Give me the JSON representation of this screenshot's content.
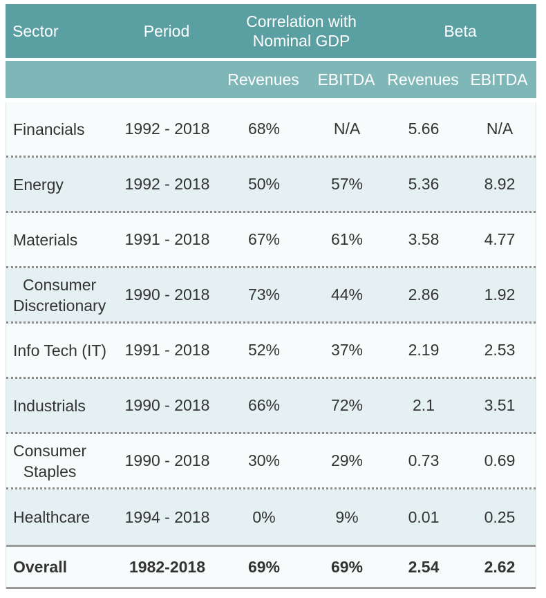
{
  "header": {
    "sector": "Sector",
    "period": "Period",
    "correlation_line1": "Correlation with",
    "correlation_line2": "Nominal GDP",
    "beta": "Beta"
  },
  "subheader": {
    "corr_revenues": "Revenues",
    "corr_ebitda": "EBITDA",
    "beta_revenues": "Revenues",
    "beta_ebitda": "EBITDA"
  },
  "rows": [
    {
      "sector_line1": "Financials",
      "sector_line2": "",
      "period": "1992 - 2018",
      "corr_rev": "68%",
      "corr_ebitda": "N/A",
      "beta_rev": "5.66",
      "beta_ebitda": "N/A"
    },
    {
      "sector_line1": "Energy",
      "sector_line2": "",
      "period": "1992 - 2018",
      "corr_rev": "50%",
      "corr_ebitda": "57%",
      "beta_rev": "5.36",
      "beta_ebitda": "8.92"
    },
    {
      "sector_line1": "Materials",
      "sector_line2": "",
      "period": "1991 - 2018",
      "corr_rev": "67%",
      "corr_ebitda": "61%",
      "beta_rev": "3.58",
      "beta_ebitda": "4.77"
    },
    {
      "sector_line1": "Consumer",
      "sector_line2": "Discretionary",
      "period": "1990 - 2018",
      "corr_rev": "73%",
      "corr_ebitda": "44%",
      "beta_rev": "2.86",
      "beta_ebitda": "1.92"
    },
    {
      "sector_line1": "Info Tech (IT)",
      "sector_line2": "",
      "period": "1991 - 2018",
      "corr_rev": "52%",
      "corr_ebitda": "37%",
      "beta_rev": "2.19",
      "beta_ebitda": "2.53"
    },
    {
      "sector_line1": "Industrials",
      "sector_line2": "",
      "period": "1990 - 2018",
      "corr_rev": "66%",
      "corr_ebitda": "72%",
      "beta_rev": "2.1",
      "beta_ebitda": "3.51"
    },
    {
      "sector_line1": "Consumer",
      "sector_line2": "Staples",
      "period": "1990 - 2018",
      "corr_rev": "30%",
      "corr_ebitda": "29%",
      "beta_rev": "0.73",
      "beta_ebitda": "0.69"
    },
    {
      "sector_line1": "Healthcare",
      "sector_line2": "",
      "period": "1994 - 2018",
      "corr_rev": "0%",
      "corr_ebitda": "9%",
      "beta_rev": "0.01",
      "beta_ebitda": "0.25"
    }
  ],
  "total": {
    "sector": "Overall",
    "period": "1982-2018",
    "corr_rev": "69%",
    "corr_ebitda": "69%",
    "beta_rev": "2.54",
    "beta_ebitda": "2.62"
  }
}
